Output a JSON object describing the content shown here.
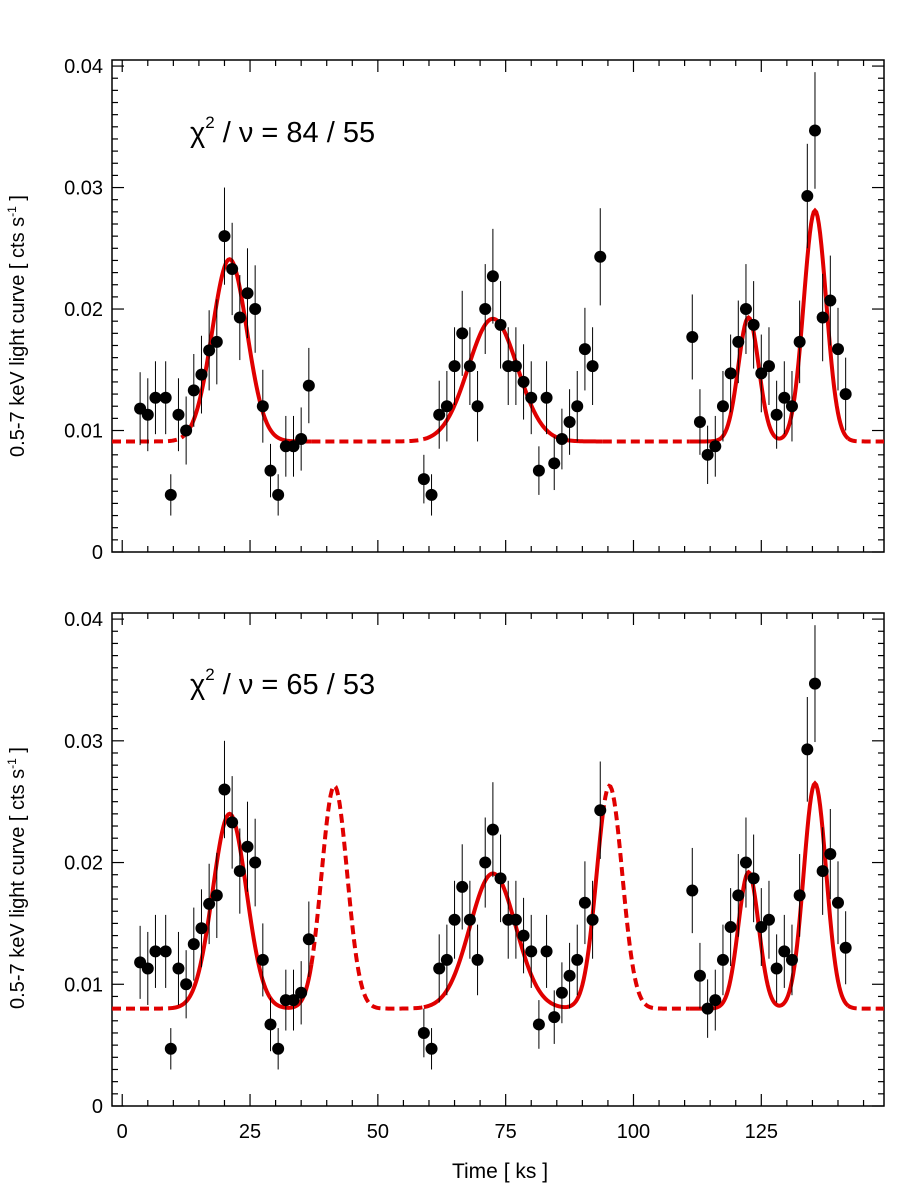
{
  "figure": {
    "xlabel": "Time [ ks ]",
    "ylabel": "0.5-7 keV light curve [ cts s",
    "ylabel_sup": "-1",
    "ylabel_end": " ]",
    "fit_color": "#e00000",
    "point_color": "#000000"
  },
  "chart_data": [
    {
      "type": "scatter",
      "title": "",
      "annotation": {
        "chi": "χ",
        "sup": "2",
        "rest": " / ν = 84 / 55"
      },
      "xlim": [
        -2,
        149
      ],
      "ylim": [
        0,
        0.0405
      ],
      "xticks": [
        0,
        25,
        50,
        75,
        100,
        125
      ],
      "xtick_labels_shown": false,
      "yticks": [
        0,
        0.01,
        0.02,
        0.03,
        0.04
      ],
      "ytick_labels": [
        "0",
        "0.01",
        "0.02",
        "0.03",
        "0.04"
      ],
      "series": [
        {
          "kind": "points_with_errorbars",
          "x": [
            3.5,
            5,
            6.5,
            8.5,
            9.5,
            11,
            12.5,
            14,
            15.5,
            17,
            18.5,
            20,
            21.5,
            23,
            24.5,
            26,
            27.5,
            29,
            30.5,
            32,
            33.5,
            35,
            36.5,
            59,
            60.5,
            62,
            63.5,
            65,
            66.5,
            68,
            69.5,
            71,
            72.5,
            74,
            75.5,
            77,
            78.5,
            80,
            81.5,
            83,
            84.5,
            86,
            87.5,
            89,
            90.5,
            92,
            93.5,
            111.5,
            113,
            114.5,
            116,
            117.5,
            119,
            120.5,
            122,
            123.5,
            125,
            126.5,
            128,
            129.5,
            131,
            132.5,
            134,
            135.5,
            137,
            138.5,
            140,
            141.5
          ],
          "y": [
            0.0118,
            0.0113,
            0.0127,
            0.0127,
            0.0047,
            0.0113,
            0.01,
            0.0133,
            0.0146,
            0.0166,
            0.0173,
            0.026,
            0.0233,
            0.0193,
            0.0213,
            0.02,
            0.012,
            0.0067,
            0.0047,
            0.0087,
            0.0087,
            0.0093,
            0.0137,
            0.006,
            0.0047,
            0.0113,
            0.012,
            0.0153,
            0.018,
            0.0153,
            0.012,
            0.02,
            0.0227,
            0.0187,
            0.0153,
            0.0153,
            0.014,
            0.0127,
            0.0067,
            0.0127,
            0.0073,
            0.0093,
            0.0107,
            0.012,
            0.0167,
            0.0153,
            0.0243,
            0.0177,
            0.0107,
            0.008,
            0.0087,
            0.012,
            0.0147,
            0.0173,
            0.02,
            0.0187,
            0.0147,
            0.0153,
            0.0113,
            0.0127,
            0.012,
            0.0173,
            0.0293,
            0.0347,
            0.0193,
            0.0207,
            0.0167,
            0.013
          ],
          "yerr": [
            0.003,
            0.003,
            0.003,
            0.003,
            0.0017,
            0.003,
            0.0028,
            0.003,
            0.0032,
            0.0033,
            0.0035,
            0.004,
            0.0038,
            0.0035,
            0.0037,
            0.0036,
            0.003,
            0.0022,
            0.0017,
            0.0025,
            0.0025,
            0.0026,
            0.0031,
            0.002,
            0.0017,
            0.0028,
            0.0029,
            0.0032,
            0.0035,
            0.0032,
            0.0029,
            0.0037,
            0.0039,
            0.0036,
            0.0032,
            0.0032,
            0.0031,
            0.003,
            0.002,
            0.003,
            0.0022,
            0.0025,
            0.0027,
            0.0029,
            0.0034,
            0.0032,
            0.004,
            0.0035,
            0.0027,
            0.0024,
            0.0025,
            0.0029,
            0.0032,
            0.0034,
            0.0037,
            0.0036,
            0.0032,
            0.0032,
            0.0028,
            0.003,
            0.0029,
            0.0034,
            0.0043,
            0.0048,
            0.0036,
            0.0037,
            0.0034,
            0.003
          ]
        },
        {
          "kind": "gaussian_fit",
          "baseline": 0.0091,
          "components": [
            {
              "center": 21,
              "amplitude": 0.015,
              "sigma": 3.4
            },
            {
              "center": 72.5,
              "amplitude": 0.0101,
              "sigma": 4.8
            },
            {
              "center": 122.5,
              "amplitude": 0.0102,
              "sigma": 2.0
            },
            {
              "center": 135.5,
              "amplitude": 0.019,
              "sigma": 2.2
            }
          ],
          "solid_ranges": [
            [
              12,
              37
            ],
            [
              59,
              94
            ],
            [
              111,
              142
            ]
          ],
          "dashed_ranges": [
            [
              -2,
              12
            ],
            [
              37,
              59
            ],
            [
              94,
              111
            ],
            [
              142,
              149
            ]
          ]
        }
      ]
    },
    {
      "type": "scatter",
      "title": "",
      "annotation": {
        "chi": "χ",
        "sup": "2",
        "rest": " / ν = 65 / 53"
      },
      "xlim": [
        -2,
        149
      ],
      "ylim": [
        0,
        0.0405
      ],
      "xticks": [
        0,
        25,
        50,
        75,
        100,
        125
      ],
      "xtick_labels": [
        "0",
        "25",
        "50",
        "75",
        "100",
        "125"
      ],
      "yticks": [
        0,
        0.01,
        0.02,
        0.03,
        0.04
      ],
      "ytick_labels": [
        "0",
        "0.01",
        "0.02",
        "0.03",
        "0.04"
      ],
      "series": [
        {
          "kind": "points_with_errorbars",
          "x": [
            3.5,
            5,
            6.5,
            8.5,
            9.5,
            11,
            12.5,
            14,
            15.5,
            17,
            18.5,
            20,
            21.5,
            23,
            24.5,
            26,
            27.5,
            29,
            30.5,
            32,
            33.5,
            35,
            36.5,
            59,
            60.5,
            62,
            63.5,
            65,
            66.5,
            68,
            69.5,
            71,
            72.5,
            74,
            75.5,
            77,
            78.5,
            80,
            81.5,
            83,
            84.5,
            86,
            87.5,
            89,
            90.5,
            92,
            93.5,
            111.5,
            113,
            114.5,
            116,
            117.5,
            119,
            120.5,
            122,
            123.5,
            125,
            126.5,
            128,
            129.5,
            131,
            132.5,
            134,
            135.5,
            137,
            138.5,
            140,
            141.5
          ],
          "y": [
            0.0118,
            0.0113,
            0.0127,
            0.0127,
            0.0047,
            0.0113,
            0.01,
            0.0133,
            0.0146,
            0.0166,
            0.0173,
            0.026,
            0.0233,
            0.0193,
            0.0213,
            0.02,
            0.012,
            0.0067,
            0.0047,
            0.0087,
            0.0087,
            0.0093,
            0.0137,
            0.006,
            0.0047,
            0.0113,
            0.012,
            0.0153,
            0.018,
            0.0153,
            0.012,
            0.02,
            0.0227,
            0.0187,
            0.0153,
            0.0153,
            0.014,
            0.0127,
            0.0067,
            0.0127,
            0.0073,
            0.0093,
            0.0107,
            0.012,
            0.0167,
            0.0153,
            0.0243,
            0.0177,
            0.0107,
            0.008,
            0.0087,
            0.012,
            0.0147,
            0.0173,
            0.02,
            0.0187,
            0.0147,
            0.0153,
            0.0113,
            0.0127,
            0.012,
            0.0173,
            0.0293,
            0.0347,
            0.0193,
            0.0207,
            0.0167,
            0.013
          ],
          "yerr": [
            0.003,
            0.003,
            0.003,
            0.003,
            0.0017,
            0.003,
            0.0028,
            0.003,
            0.0032,
            0.0033,
            0.0035,
            0.004,
            0.0038,
            0.0035,
            0.0037,
            0.0036,
            0.003,
            0.0022,
            0.0017,
            0.0025,
            0.0025,
            0.0026,
            0.0031,
            0.002,
            0.0017,
            0.0028,
            0.0029,
            0.0032,
            0.0035,
            0.0032,
            0.0029,
            0.0037,
            0.0039,
            0.0036,
            0.0032,
            0.0032,
            0.0031,
            0.003,
            0.002,
            0.003,
            0.0022,
            0.0025,
            0.0027,
            0.0029,
            0.0034,
            0.0032,
            0.004,
            0.0035,
            0.0027,
            0.0024,
            0.0025,
            0.0029,
            0.0032,
            0.0034,
            0.0037,
            0.0036,
            0.0032,
            0.0032,
            0.0028,
            0.003,
            0.0029,
            0.0034,
            0.0043,
            0.0048,
            0.0036,
            0.0037,
            0.0034,
            0.003
          ]
        },
        {
          "kind": "gaussian_fit",
          "baseline": 0.008,
          "components": [
            {
              "center": 21,
              "amplitude": 0.016,
              "sigma": 3.3
            },
            {
              "center": 41.5,
              "amplitude": 0.0183,
              "sigma": 2.5
            },
            {
              "center": 72.5,
              "amplitude": 0.0111,
              "sigma": 4.5
            },
            {
              "center": 95.3,
              "amplitude": 0.0183,
              "sigma": 2.5
            },
            {
              "center": 122.5,
              "amplitude": 0.0112,
              "sigma": 2.0
            },
            {
              "center": 135.5,
              "amplitude": 0.0185,
              "sigma": 2.2
            }
          ],
          "solid_ranges": [
            [
              9,
              37
            ],
            [
              59,
              94
            ],
            [
              111,
              142
            ]
          ],
          "dashed_ranges": [
            [
              -2,
              9
            ],
            [
              37,
              59
            ],
            [
              94,
              111
            ],
            [
              142,
              149
            ]
          ]
        }
      ]
    }
  ]
}
